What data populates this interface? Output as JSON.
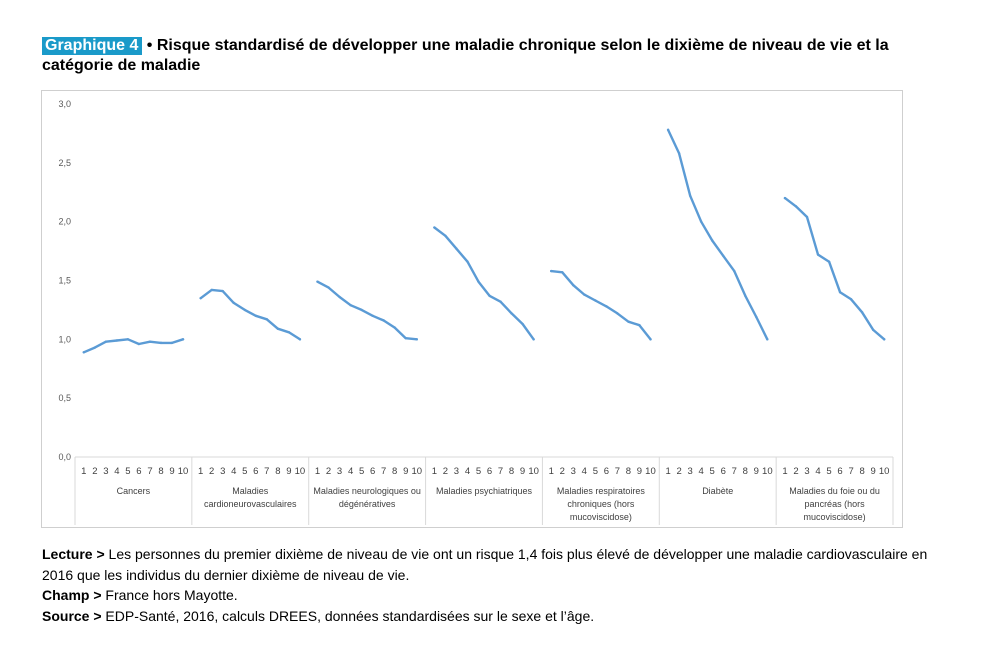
{
  "header": {
    "badge": "Graphique 4",
    "title": " • Risque standardisé de développer une maladie chronique selon le dixième de niveau de vie et la catégorie de maladie"
  },
  "chart_data": {
    "type": "line",
    "ylim": [
      0,
      3
    ],
    "yticks": [
      "0,0",
      "0,5",
      "1,0",
      "1,5",
      "2,0",
      "2,5",
      "3,0"
    ],
    "x": [
      "1",
      "2",
      "3",
      "4",
      "5",
      "6",
      "7",
      "8",
      "9",
      "10"
    ],
    "grid": false,
    "color": "#5b9bd5",
    "groups": [
      {
        "label": [
          "Cancers"
        ],
        "values": [
          0.89,
          0.93,
          0.98,
          0.99,
          1.0,
          0.96,
          0.98,
          0.97,
          0.97,
          1.0
        ]
      },
      {
        "label": [
          "Maladies",
          "cardioneurovasculaires"
        ],
        "values": [
          1.35,
          1.42,
          1.41,
          1.31,
          1.25,
          1.2,
          1.17,
          1.09,
          1.06,
          1.0
        ]
      },
      {
        "label": [
          "Maladies neurologiques ou",
          "dégénératives"
        ],
        "values": [
          1.49,
          1.44,
          1.36,
          1.29,
          1.25,
          1.2,
          1.16,
          1.1,
          1.01,
          1.0
        ]
      },
      {
        "label": [
          "Maladies psychiatriques"
        ],
        "values": [
          1.95,
          1.88,
          1.77,
          1.66,
          1.49,
          1.37,
          1.32,
          1.22,
          1.13,
          1.0
        ]
      },
      {
        "label": [
          "Maladies respiratoires",
          "chroniques (hors",
          "mucoviscidose)"
        ],
        "values": [
          1.58,
          1.57,
          1.46,
          1.38,
          1.33,
          1.28,
          1.22,
          1.15,
          1.12,
          1.0
        ]
      },
      {
        "label": [
          "Diabète"
        ],
        "values": [
          2.78,
          2.58,
          2.22,
          2.0,
          1.84,
          1.71,
          1.58,
          1.37,
          1.19,
          1.0
        ]
      },
      {
        "label": [
          "Maladies du foie ou du",
          "pancréas (hors",
          "mucoviscidose)"
        ],
        "values": [
          2.2,
          2.13,
          2.04,
          1.72,
          1.66,
          1.4,
          1.34,
          1.23,
          1.08,
          1.0
        ]
      }
    ]
  },
  "notes": {
    "lecture_label": "Lecture >",
    "lecture_text": " Les personnes du premier dixième de niveau de vie ont un risque 1,4 fois plus élevé de développer une maladie cardiovasculaire en 2016 que les individus du dernier dixième de niveau de vie.",
    "champ_label": "Champ >",
    "champ_text": " France hors Mayotte.",
    "source_label": "Source >",
    "source_text": " EDP-Santé, 2016, calculs DREES, données standardisées sur le sexe et l’âge."
  }
}
